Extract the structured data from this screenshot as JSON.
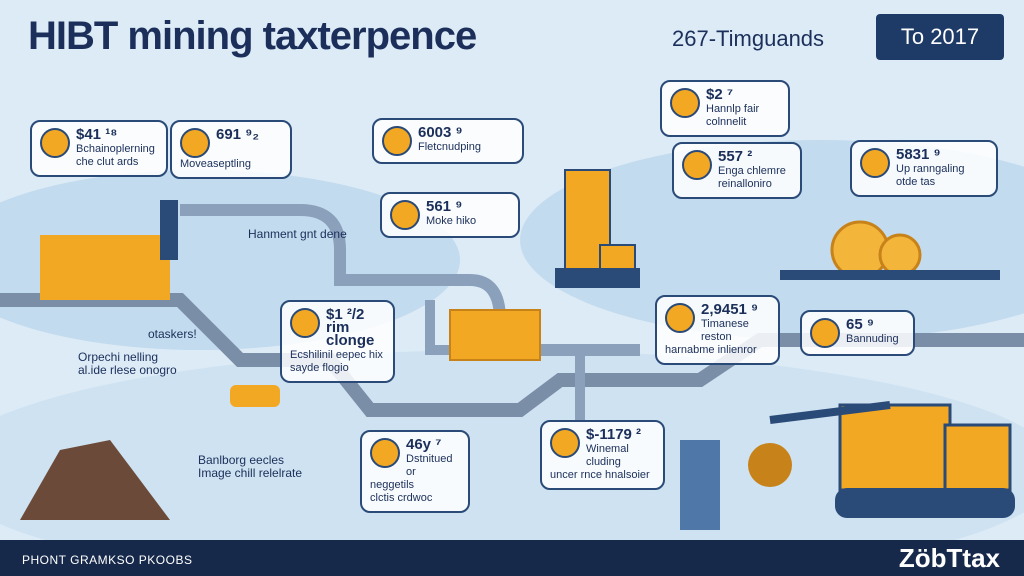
{
  "header": {
    "title": "HIBT mining taxterpence",
    "subtitle": "267-Timguands",
    "badge": "To 2017"
  },
  "callouts": [
    {
      "value": "$41 ¹⁸",
      "lines": [
        "Bchainoplerning",
        "che clut ards"
      ]
    },
    {
      "value": "691 ⁹₂",
      "lines": [
        "Moveaseptling"
      ]
    },
    {
      "value": "6003 ⁹",
      "lines": [
        "Fletcnudping"
      ]
    },
    {
      "value": "$2 ⁷",
      "lines": [
        "Hannlp fair",
        "colnnelit"
      ]
    },
    {
      "value": "557 ²",
      "lines": [
        "Enga chlemre",
        "reinalloniro"
      ]
    },
    {
      "value": "5831 ⁹",
      "lines": [
        "Up ranngaling",
        "otde tas"
      ]
    },
    {
      "lines": [
        "Hanment gnt dene"
      ]
    },
    {
      "value": "561 ⁹",
      "lines": [
        "Moke hiko"
      ]
    },
    {
      "lines": [
        "otaskers!"
      ]
    },
    {
      "lines": [
        "Orpechi nelling",
        "al.ide rlese onogro"
      ]
    },
    {
      "value": "$1 ²/2 rim clonge",
      "lines": [
        "Ecshilinil eepec hix",
        "sayde flogio"
      ]
    },
    {
      "value": "2,9451 ⁹",
      "lines": [
        "Timanese reston",
        "harnabme inlienror"
      ]
    },
    {
      "value": "65 ⁹",
      "lines": [
        "Bannuding"
      ]
    },
    {
      "value": "$-1179 ²",
      "lines": [
        "Winemal cluding",
        "uncer rnce hnalsoier"
      ]
    },
    {
      "lines": [
        "Banlborg eecles",
        "Image chill relelrate"
      ]
    },
    {
      "value": "46y ⁷",
      "lines": [
        "Dstnitued",
        "or neggetils",
        "clctis crdwoc"
      ]
    }
  ],
  "footer": {
    "left": "PHONT GRAMKSO PKOOBS",
    "brand": "ZöbTtax"
  }
}
